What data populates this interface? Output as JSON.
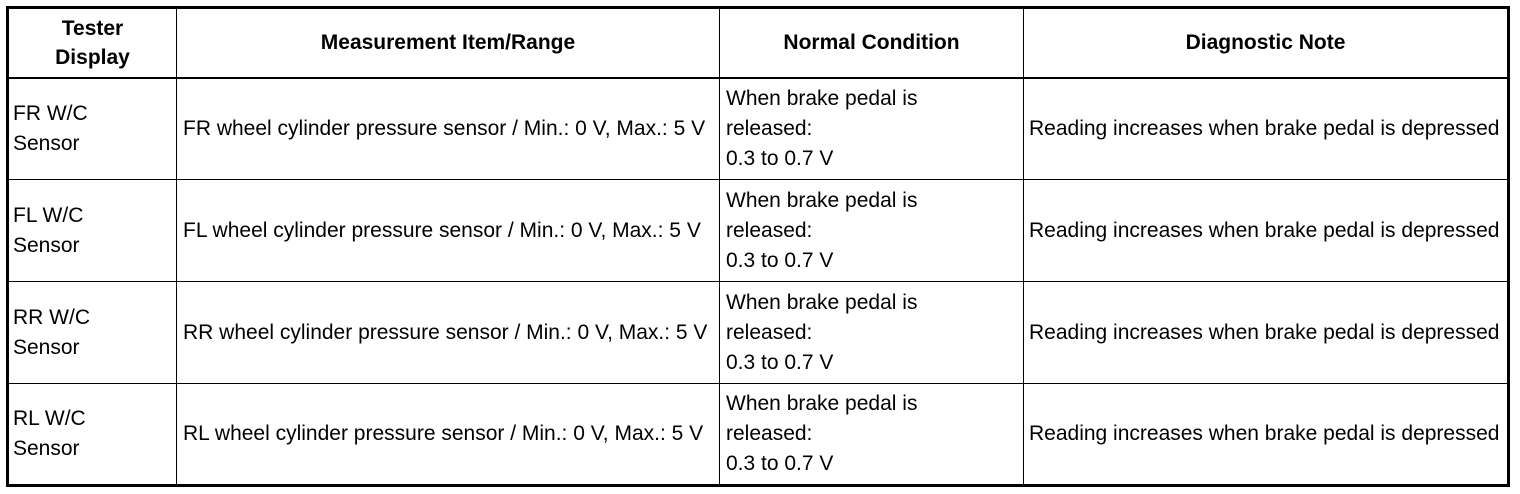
{
  "headers": [
    "Tester Display",
    "Measurement Item/Range",
    "Normal Condition",
    "Diagnostic Note"
  ],
  "rows": [
    {
      "display": "FR W/C Sensor",
      "item": "FR wheel cylinder pressure sensor / Min.: 0 V, Max.: 5 V",
      "normal": "When brake pedal is released:\n0.3 to 0.7 V",
      "note": "Reading increases when brake pedal is depressed"
    },
    {
      "display": "FL W/C Sensor",
      "item": "FL wheel cylinder pressure sensor / Min.: 0 V, Max.: 5 V",
      "normal": "When brake pedal is released:\n0.3 to 0.7 V",
      "note": "Reading increases when brake pedal is depressed"
    },
    {
      "display": "RR W/C Sensor",
      "item": "RR wheel cylinder pressure sensor / Min.: 0 V, Max.: 5 V",
      "normal": "When brake pedal is released:\n0.3 to 0.7 V",
      "note": "Reading increases when brake pedal is depressed"
    },
    {
      "display": "RL W/C Sensor",
      "item": "RL wheel cylinder pressure sensor / Min.: 0 V, Max.: 5 V",
      "normal": "When brake pedal is released:\n0.3 to 0.7 V",
      "note": "Reading increases when brake pedal is depressed"
    }
  ]
}
